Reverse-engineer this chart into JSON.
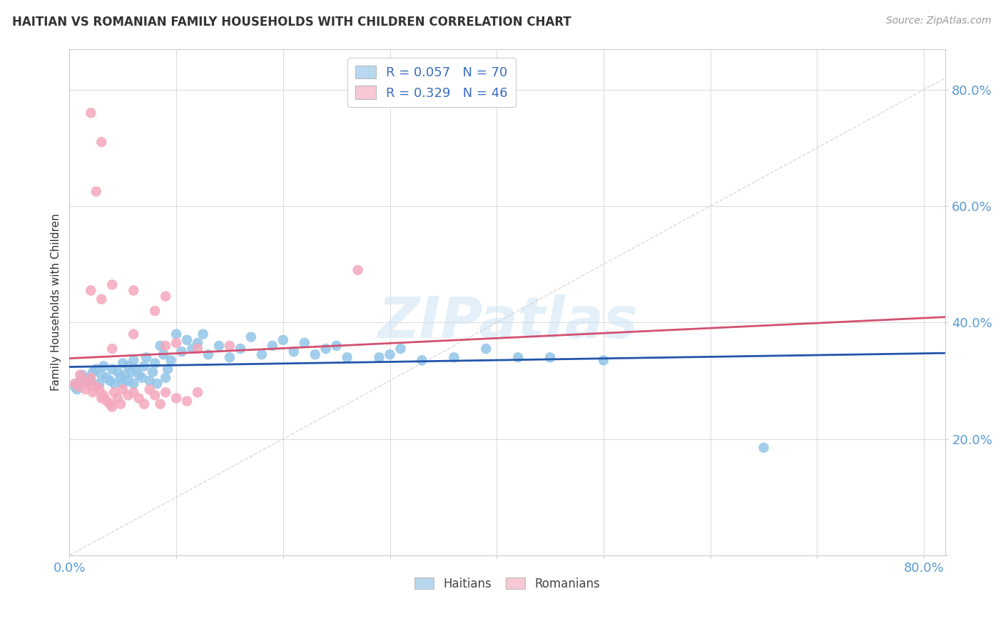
{
  "title": "HAITIAN VS ROMANIAN FAMILY HOUSEHOLDS WITH CHILDREN CORRELATION CHART",
  "source": "Source: ZipAtlas.com",
  "ylabel": "Family Households with Children",
  "R_haitian": 0.057,
  "N_haitian": 70,
  "R_romanian": 0.329,
  "N_romanian": 46,
  "haitian_color": "#92c5e8",
  "romanian_color": "#f4a8bc",
  "haitian_line_color": "#2255aa",
  "romanian_line_color": "#d45070",
  "diag_color": "#cccccc",
  "legend_box_haitian": "#b8d8f0",
  "legend_box_romanian": "#f8c8d4",
  "legend_text_color": "#3b6dbf",
  "legend_N_color": "#e05070",
  "bg_color": "#ffffff",
  "grid_color": "#dddddd",
  "title_color": "#333333",
  "tick_color": "#5b9bd5",
  "watermark_color": "#cce4f5",
  "haitian_x": [
    0.005,
    0.007,
    0.01,
    0.012,
    0.015,
    0.018,
    0.02,
    0.022,
    0.025,
    0.028,
    0.03,
    0.032,
    0.035,
    0.038,
    0.04,
    0.042,
    0.045,
    0.048,
    0.05,
    0.05,
    0.052,
    0.055,
    0.055,
    0.058,
    0.06,
    0.06,
    0.062,
    0.065,
    0.068,
    0.07,
    0.072,
    0.075,
    0.078,
    0.08,
    0.082,
    0.085,
    0.088,
    0.09,
    0.092,
    0.095,
    0.1,
    0.105,
    0.11,
    0.115,
    0.12,
    0.125,
    0.13,
    0.14,
    0.15,
    0.16,
    0.17,
    0.18,
    0.19,
    0.2,
    0.21,
    0.22,
    0.23,
    0.24,
    0.25,
    0.26,
    0.29,
    0.3,
    0.31,
    0.33,
    0.36,
    0.39,
    0.42,
    0.45,
    0.5,
    0.65
  ],
  "haitian_y": [
    0.29,
    0.285,
    0.3,
    0.31,
    0.295,
    0.305,
    0.3,
    0.315,
    0.32,
    0.295,
    0.31,
    0.325,
    0.305,
    0.3,
    0.32,
    0.295,
    0.315,
    0.305,
    0.33,
    0.295,
    0.31,
    0.325,
    0.3,
    0.315,
    0.335,
    0.295,
    0.32,
    0.31,
    0.305,
    0.325,
    0.34,
    0.3,
    0.315,
    0.33,
    0.295,
    0.36,
    0.345,
    0.305,
    0.32,
    0.335,
    0.38,
    0.35,
    0.37,
    0.355,
    0.365,
    0.38,
    0.345,
    0.36,
    0.34,
    0.355,
    0.375,
    0.345,
    0.36,
    0.37,
    0.35,
    0.365,
    0.345,
    0.355,
    0.36,
    0.34,
    0.34,
    0.345,
    0.355,
    0.335,
    0.34,
    0.355,
    0.34,
    0.34,
    0.335,
    0.185
  ],
  "romanian_x": [
    0.005,
    0.008,
    0.01,
    0.012,
    0.015,
    0.018,
    0.02,
    0.022,
    0.025,
    0.028,
    0.03,
    0.032,
    0.035,
    0.038,
    0.04,
    0.042,
    0.045,
    0.048,
    0.05,
    0.055,
    0.06,
    0.065,
    0.07,
    0.075,
    0.08,
    0.085,
    0.09,
    0.1,
    0.11,
    0.12,
    0.02,
    0.03,
    0.04,
    0.06,
    0.09,
    0.1,
    0.12,
    0.15,
    0.04,
    0.06,
    0.08,
    0.09,
    0.03,
    0.02,
    0.025,
    0.27
  ],
  "romanian_y": [
    0.295,
    0.29,
    0.31,
    0.3,
    0.285,
    0.295,
    0.305,
    0.28,
    0.29,
    0.285,
    0.27,
    0.275,
    0.265,
    0.26,
    0.255,
    0.28,
    0.27,
    0.26,
    0.285,
    0.275,
    0.28,
    0.27,
    0.26,
    0.285,
    0.275,
    0.26,
    0.28,
    0.27,
    0.265,
    0.28,
    0.455,
    0.44,
    0.465,
    0.455,
    0.36,
    0.365,
    0.355,
    0.36,
    0.355,
    0.38,
    0.42,
    0.445,
    0.71,
    0.76,
    0.625,
    0.49
  ],
  "xlim": [
    0.0,
    0.82
  ],
  "ylim": [
    0.0,
    0.87
  ],
  "xtick_vals": [
    0.0,
    0.1,
    0.2,
    0.3,
    0.4,
    0.5,
    0.6,
    0.7,
    0.8
  ],
  "ytick_vals": [
    0.0,
    0.2,
    0.4,
    0.6,
    0.8
  ]
}
